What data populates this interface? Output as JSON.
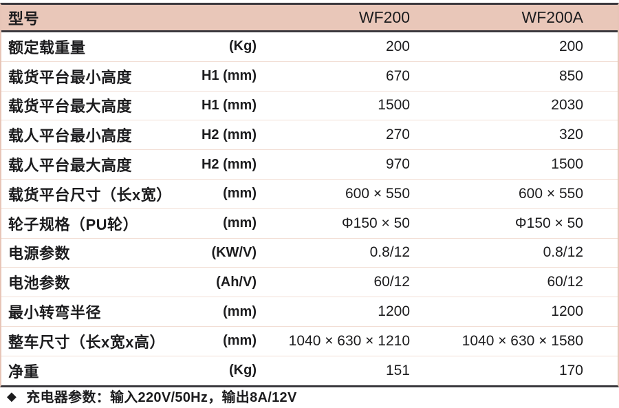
{
  "table": {
    "header": {
      "model_label": "型号",
      "col_wf200": "WF200",
      "col_wf200a": "WF200A"
    },
    "rows": [
      {
        "label": "额定载重量",
        "unit": "(Kg)",
        "wf200": "200",
        "wf200a": "200"
      },
      {
        "label": "载货平台最小高度",
        "unit": "H1 (mm)",
        "wf200": "670",
        "wf200a": "850"
      },
      {
        "label": "载货平台最大高度",
        "unit": "H1 (mm)",
        "wf200": "1500",
        "wf200a": "2030"
      },
      {
        "label": "载人平台最小高度",
        "unit": "H2 (mm)",
        "wf200": "270",
        "wf200a": "320"
      },
      {
        "label": "载人平台最大高度",
        "unit": "H2 (mm)",
        "wf200": "970",
        "wf200a": "1500"
      },
      {
        "label": "载货平台尺寸（长x宽）",
        "unit": "(mm)",
        "wf200": "600 × 550",
        "wf200a": "600 × 550"
      },
      {
        "label": "轮子规格（PU轮）",
        "unit": "(mm)",
        "wf200": "Φ150 × 50",
        "wf200a": "Φ150 × 50"
      },
      {
        "label": "电源参数",
        "unit": "(KW/V)",
        "wf200": "0.8/12",
        "wf200a": "0.8/12"
      },
      {
        "label": "电池参数",
        "unit": "(Ah/V)",
        "wf200": "60/12",
        "wf200a": "60/12"
      },
      {
        "label": "最小转弯半径",
        "unit": "(mm)",
        "wf200": "1200",
        "wf200a": "1200"
      },
      {
        "label": "整车尺寸（长x宽x高）",
        "unit": "(mm)",
        "wf200": "1040 × 630 × 1210",
        "wf200a": "1040 × 630 × 1580"
      },
      {
        "label": "净重",
        "unit": "(Kg)",
        "wf200": "151",
        "wf200a": "170"
      }
    ]
  },
  "footer": {
    "bullet": "◆",
    "text": "充电器参数：输入220V/50Hz，输出8A/12V"
  },
  "colors": {
    "header_bg": "#e9c7b9",
    "dark_rule": "#3a383d",
    "light_rule": "#f2ded5",
    "text": "#1c1c1e"
  }
}
